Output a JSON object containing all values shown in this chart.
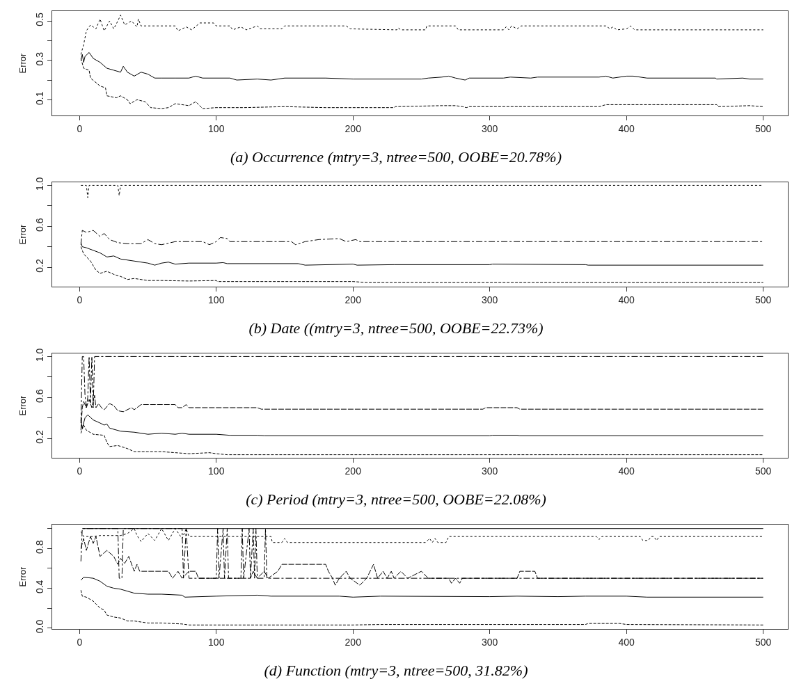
{
  "chart_data": [
    {
      "type": "line",
      "title": "(a) Occurrence (mtry=3, ntree=500, OOBE=20.78%)",
      "ylabel": "Error",
      "xlim": [
        -20,
        518
      ],
      "xticks": [
        0,
        100,
        200,
        300,
        400,
        500
      ],
      "ylim": [
        0.02,
        0.55
      ],
      "yticks": [
        0.1,
        {
          "value": 0.2,
          "label": null
        },
        0.3,
        {
          "value": 0.4,
          "label": null
        },
        0.5
      ],
      "grid": false,
      "series": [
        {
          "color": "#000000",
          "line_style": "solid",
          "x": [
            1,
            2,
            3,
            4,
            7,
            10,
            15,
            20,
            25,
            30,
            32,
            35,
            40,
            45,
            50,
            55,
            60,
            70,
            80,
            85,
            90,
            110,
            115,
            130,
            140,
            150,
            180,
            200,
            250,
            255,
            265,
            270,
            275,
            282,
            285,
            310,
            315,
            330,
            335,
            380,
            385,
            390,
            400,
            405,
            415,
            465,
            466,
            485,
            490,
            500
          ],
          "values": [
            0.3,
            0.33,
            0.29,
            0.32,
            0.34,
            0.31,
            0.29,
            0.26,
            0.25,
            0.24,
            0.27,
            0.24,
            0.22,
            0.24,
            0.23,
            0.21,
            0.21,
            0.21,
            0.21,
            0.22,
            0.21,
            0.21,
            0.2,
            0.205,
            0.2,
            0.21,
            0.21,
            0.205,
            0.205,
            0.21,
            0.215,
            0.22,
            0.21,
            0.2,
            0.21,
            0.21,
            0.215,
            0.21,
            0.215,
            0.215,
            0.22,
            0.21,
            0.22,
            0.22,
            0.21,
            0.21,
            0.205,
            0.21,
            0.205,
            0.205
          ]
        },
        {
          "color": "#000000",
          "line_style": "dashed",
          "x": [
            1,
            3,
            7,
            8,
            15,
            19,
            20,
            27,
            30,
            35,
            37,
            42,
            48,
            52,
            60,
            65,
            70,
            80,
            85,
            90,
            100,
            120,
            150,
            180,
            230,
            231,
            265,
            275,
            280,
            283,
            285,
            380,
            385,
            420,
            466,
            467,
            490,
            500
          ],
          "values": [
            0.31,
            0.26,
            0.25,
            0.21,
            0.17,
            0.16,
            0.12,
            0.11,
            0.12,
            0.1,
            0.08,
            0.1,
            0.09,
            0.06,
            0.055,
            0.06,
            0.08,
            0.07,
            0.09,
            0.055,
            0.06,
            0.06,
            0.065,
            0.06,
            0.06,
            0.065,
            0.07,
            0.07,
            0.065,
            0.06,
            0.065,
            0.065,
            0.075,
            0.075,
            0.075,
            0.065,
            0.07,
            0.065
          ]
        },
        {
          "color": "#000000",
          "line_style": "dotted",
          "x": [
            1,
            3,
            5,
            8,
            12,
            15,
            18,
            22,
            25,
            28,
            30,
            33,
            38,
            42,
            43,
            45,
            70,
            72,
            78,
            82,
            88,
            98,
            100,
            110,
            112,
            118,
            122,
            130,
            132,
            148,
            150,
            195,
            198,
            232,
            233,
            235,
            253,
            254,
            275,
            277,
            310,
            312,
            314,
            316,
            320,
            323,
            385,
            388,
            390,
            393,
            400,
            403,
            406,
            500
          ],
          "values": [
            0.33,
            0.38,
            0.45,
            0.48,
            0.46,
            0.51,
            0.45,
            0.5,
            0.46,
            0.5,
            0.53,
            0.48,
            0.5,
            0.47,
            0.51,
            0.475,
            0.475,
            0.45,
            0.47,
            0.455,
            0.49,
            0.49,
            0.475,
            0.475,
            0.455,
            0.47,
            0.455,
            0.475,
            0.46,
            0.46,
            0.475,
            0.475,
            0.46,
            0.455,
            0.465,
            0.455,
            0.455,
            0.475,
            0.475,
            0.455,
            0.455,
            0.47,
            0.455,
            0.475,
            0.46,
            0.475,
            0.475,
            0.46,
            0.47,
            0.455,
            0.46,
            0.475,
            0.455,
            0.455
          ]
        }
      ]
    },
    {
      "type": "line",
      "title": "(b) Date ((mtry=3, ntree=500, OOBE=22.73%)",
      "ylabel": "Error",
      "xlim": [
        -20,
        518
      ],
      "xticks": [
        0,
        100,
        200,
        300,
        400,
        500
      ],
      "ylim": [
        0.01,
        1.03
      ],
      "yticks": [
        0.2,
        {
          "value": 0.4,
          "label": null
        },
        0.6,
        {
          "value": 0.8,
          "label": null
        },
        {
          "value": 1,
          "label": "1.0"
        }
      ],
      "grid": false,
      "series": [
        {
          "color": "#000000",
          "line_style": "solid",
          "x": [
            1,
            2,
            5,
            15,
            20,
            25,
            30,
            40,
            50,
            55,
            60,
            65,
            70,
            80,
            100,
            105,
            108,
            160,
            165,
            200,
            203,
            230,
            300,
            302,
            370,
            372,
            500
          ],
          "values": [
            0.44,
            0.4,
            0.39,
            0.34,
            0.3,
            0.31,
            0.28,
            0.26,
            0.24,
            0.22,
            0.24,
            0.25,
            0.23,
            0.24,
            0.24,
            0.245,
            0.235,
            0.235,
            0.22,
            0.23,
            0.22,
            0.225,
            0.225,
            0.23,
            0.225,
            0.22,
            0.22
          ]
        },
        {
          "color": "#000000",
          "line_style": "dashed",
          "x": [
            1,
            3,
            8,
            12,
            15,
            20,
            25,
            30,
            35,
            40,
            50,
            60,
            80,
            100,
            101,
            200,
            210,
            500
          ],
          "values": [
            0.4,
            0.33,
            0.26,
            0.17,
            0.14,
            0.16,
            0.13,
            0.11,
            0.08,
            0.09,
            0.07,
            0.07,
            0.065,
            0.07,
            0.06,
            0.06,
            0.05,
            0.05
          ]
        },
        {
          "color": "#000000",
          "line_style": "dotted",
          "x": [
            1,
            5,
            6,
            7,
            28,
            29,
            30,
            500
          ],
          "values": [
            1.0,
            1.0,
            0.88,
            1.0,
            1.0,
            0.9,
            1.0,
            1.0
          ]
        },
        {
          "color": "#000000",
          "line_style": "dashdot",
          "x": [
            1,
            2,
            5,
            10,
            15,
            18,
            22,
            28,
            35,
            45,
            50,
            55,
            60,
            70,
            90,
            95,
            100,
            103,
            108,
            110,
            155,
            158,
            165,
            175,
            190,
            195,
            202,
            205,
            500
          ],
          "values": [
            0.42,
            0.56,
            0.54,
            0.56,
            0.5,
            0.53,
            0.47,
            0.44,
            0.43,
            0.43,
            0.47,
            0.43,
            0.42,
            0.45,
            0.45,
            0.42,
            0.45,
            0.49,
            0.48,
            0.45,
            0.45,
            0.42,
            0.45,
            0.47,
            0.48,
            0.45,
            0.47,
            0.45,
            0.45
          ]
        }
      ]
    },
    {
      "type": "line",
      "title": "(c) Period (mtry=3, ntree=500, OOBE=22.08%)",
      "ylabel": "Error",
      "xlim": [
        -20,
        518
      ],
      "xticks": [
        0,
        100,
        200,
        300,
        400,
        500
      ],
      "ylim": [
        0.01,
        1.03
      ],
      "yticks": [
        0.2,
        {
          "value": 0.4,
          "label": null
        },
        0.6,
        {
          "value": 0.8,
          "label": null
        },
        {
          "value": 1,
          "label": "1.0"
        }
      ],
      "grid": false,
      "series": [
        {
          "color": "#000000",
          "line_style": "solid",
          "x": [
            1,
            2,
            4,
            6,
            10,
            15,
            18,
            20,
            22,
            30,
            40,
            50,
            60,
            70,
            75,
            80,
            100,
            110,
            130,
            135,
            300,
            302,
            320,
            322,
            500
          ],
          "values": [
            0.38,
            0.3,
            0.4,
            0.43,
            0.38,
            0.35,
            0.33,
            0.34,
            0.3,
            0.27,
            0.26,
            0.24,
            0.25,
            0.24,
            0.25,
            0.24,
            0.24,
            0.23,
            0.23,
            0.225,
            0.225,
            0.23,
            0.23,
            0.225,
            0.225
          ]
        },
        {
          "color": "#000000",
          "line_style": "dashed",
          "x": [
            1,
            3,
            5,
            10,
            18,
            20,
            22,
            28,
            35,
            40,
            50,
            60,
            70,
            80,
            95,
            100,
            108,
            500
          ],
          "values": [
            0.25,
            0.33,
            0.28,
            0.24,
            0.23,
            0.16,
            0.12,
            0.13,
            0.1,
            0.07,
            0.07,
            0.07,
            0.06,
            0.05,
            0.06,
            0.05,
            0.04,
            0.04
          ]
        },
        {
          "color": "#000000",
          "line_style": "longdash",
          "x": [
            1,
            2,
            3,
            5,
            7,
            9,
            11,
            12,
            14,
            16,
            18,
            22,
            25,
            28,
            32,
            38,
            40,
            45,
            70,
            72,
            75,
            78,
            80,
            130,
            133,
            295,
            297,
            320,
            322,
            500
          ],
          "values": [
            0.28,
            0.5,
            0.56,
            0.5,
            0.58,
            0.5,
            0.62,
            0.5,
            0.54,
            0.5,
            0.48,
            0.54,
            0.52,
            0.47,
            0.46,
            0.5,
            0.48,
            0.53,
            0.53,
            0.5,
            0.5,
            0.53,
            0.5,
            0.5,
            0.485,
            0.485,
            0.5,
            0.5,
            0.485,
            0.485
          ]
        },
        {
          "color": "#000000",
          "line_style": "dashdot",
          "x": [
            1,
            2,
            3,
            4,
            5,
            6,
            7,
            8,
            9,
            10,
            11,
            500
          ],
          "values": [
            0.35,
            1.0,
            1.0,
            0.62,
            0.5,
            0.6,
            1.0,
            0.55,
            1.0,
            0.5,
            1.0,
            1.0
          ]
        }
      ]
    },
    {
      "type": "line",
      "title": "(d) Function (mtry=3, ntree=500, 31.82%)",
      "ylabel": "Error",
      "xlim": [
        -20,
        518
      ],
      "xticks": [
        0,
        100,
        200,
        300,
        400,
        500
      ],
      "ylim": [
        -0.01,
        1.04
      ],
      "yticks": [
        {
          "value": 0,
          "label": "0.0"
        },
        {
          "value": 0.2,
          "label": null
        },
        0.4,
        {
          "value": 0.6,
          "label": null
        },
        0.8,
        {
          "value": 1,
          "label": null
        }
      ],
      "grid": false,
      "series": [
        {
          "color": "#000000",
          "line_style": "solid",
          "x": [
            1,
            3,
            10,
            15,
            20,
            25,
            30,
            35,
            40,
            50,
            60,
            75,
            77,
            100,
            130,
            140,
            190,
            200,
            220,
            300,
            320,
            350,
            370,
            400,
            415,
            500
          ],
          "values": [
            0.48,
            0.51,
            0.5,
            0.47,
            0.42,
            0.4,
            0.39,
            0.37,
            0.35,
            0.34,
            0.34,
            0.33,
            0.31,
            0.32,
            0.33,
            0.32,
            0.32,
            0.31,
            0.32,
            0.315,
            0.32,
            0.315,
            0.32,
            0.32,
            0.31,
            0.31
          ]
        },
        {
          "color": "#000000",
          "line_style": "dashed",
          "x": [
            1,
            2,
            5,
            10,
            15,
            18,
            20,
            25,
            30,
            35,
            40,
            50,
            60,
            75,
            80,
            200,
            220,
            370,
            372,
            395,
            400,
            500
          ],
          "values": [
            0.38,
            0.32,
            0.31,
            0.27,
            0.2,
            0.18,
            0.13,
            0.11,
            0.1,
            0.07,
            0.07,
            0.05,
            0.05,
            0.04,
            0.03,
            0.03,
            0.035,
            0.035,
            0.045,
            0.045,
            0.035,
            0.03
          ]
        },
        {
          "color": "#000000",
          "line_style": "dotted",
          "x": [
            1,
            3,
            10,
            15,
            20,
            30,
            35,
            40,
            42,
            45,
            50,
            55,
            60,
            65,
            70,
            75,
            78,
            80,
            140,
            141,
            148,
            150,
            152,
            253,
            256,
            258,
            260,
            262,
            268,
            270,
            378,
            380,
            382,
            410,
            412,
            416,
            418,
            420,
            422,
            424,
            500
          ],
          "values": [
            0.97,
            0.92,
            0.92,
            0.93,
            0.93,
            0.93,
            0.95,
            1.0,
            0.93,
            0.87,
            0.95,
            0.88,
            1.0,
            0.88,
            1.0,
            0.9,
            1.0,
            0.92,
            0.92,
            0.86,
            0.86,
            0.9,
            0.86,
            0.86,
            0.9,
            0.86,
            0.9,
            0.86,
            0.86,
            0.92,
            0.92,
            0.89,
            0.92,
            0.92,
            0.88,
            0.88,
            0.92,
            0.92,
            0.88,
            0.92,
            0.92
          ]
        },
        {
          "color": "#000000",
          "line_style": "dashdot",
          "x": [
            1,
            2,
            28,
            29,
            31,
            32,
            75,
            76,
            78,
            80,
            100,
            101,
            102,
            105,
            106,
            108,
            109,
            118,
            119,
            120,
            124,
            125,
            127,
            128,
            129,
            130,
            135,
            136,
            137,
            500
          ],
          "values": [
            0.67,
            1.0,
            1.0,
            0.5,
            0.5,
            1.0,
            1.0,
            0.5,
            1.0,
            0.5,
            0.5,
            1.0,
            0.5,
            1.0,
            0.5,
            1.0,
            0.5,
            0.5,
            1.0,
            0.5,
            1.0,
            0.5,
            1.0,
            0.5,
            1.0,
            0.5,
            0.5,
            1.0,
            0.5,
            0.5
          ]
        },
        {
          "color": "#000000",
          "line_style": "longdash",
          "x": [
            1,
            3,
            5,
            8,
            10,
            12,
            15,
            20,
            25,
            28,
            30,
            33,
            36,
            40,
            42,
            44,
            65,
            68,
            72,
            75,
            80,
            85,
            87,
            125,
            127,
            130,
            135,
            138,
            145,
            148,
            180,
            182,
            185,
            187,
            190,
            195,
            198,
            205,
            210,
            215,
            218,
            222,
            225,
            228,
            230,
            235,
            240,
            250,
            255,
            270,
            272,
            275,
            278,
            280,
            320,
            322,
            333,
            335,
            500
          ],
          "values": [
            0.8,
            0.9,
            0.78,
            0.92,
            0.85,
            0.92,
            0.72,
            0.78,
            0.72,
            0.64,
            0.7,
            0.65,
            0.72,
            0.57,
            0.64,
            0.57,
            0.57,
            0.5,
            0.57,
            0.5,
            0.57,
            0.57,
            0.5,
            0.5,
            0.57,
            0.5,
            0.57,
            0.5,
            0.57,
            0.64,
            0.64,
            0.57,
            0.5,
            0.43,
            0.5,
            0.57,
            0.5,
            0.43,
            0.5,
            0.64,
            0.5,
            0.57,
            0.5,
            0.57,
            0.5,
            0.57,
            0.5,
            0.57,
            0.5,
            0.5,
            0.45,
            0.5,
            0.45,
            0.5,
            0.5,
            0.57,
            0.57,
            0.5,
            0.5
          ]
        },
        {
          "color": "#000000",
          "line_style": "solid",
          "x": [
            2,
            500
          ],
          "values": [
            1.0,
            1.0
          ]
        }
      ]
    }
  ]
}
